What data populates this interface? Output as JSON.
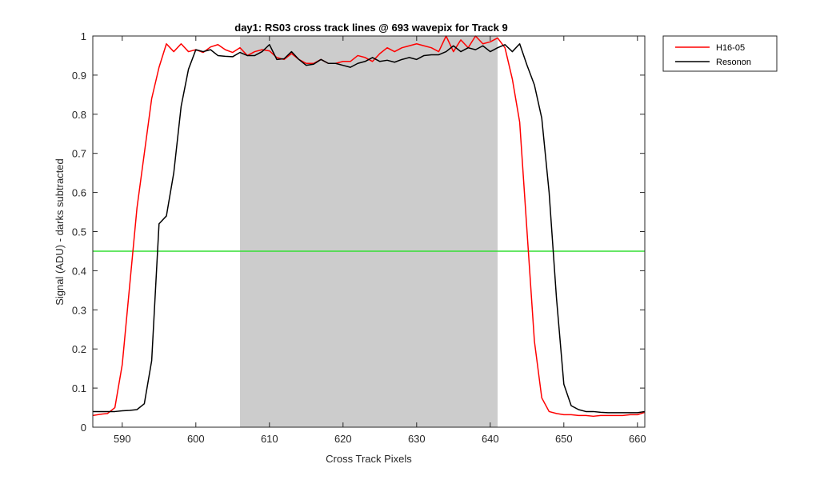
{
  "chart_data": {
    "type": "line",
    "title": "day1: RS03  cross track lines @ 693 wavepix for Track 9",
    "xlabel": "Cross Track Pixels",
    "ylabel": "Signal (ADU) - darks subtracted",
    "xlim": [
      586,
      661
    ],
    "ylim": [
      0,
      1
    ],
    "xticks": [
      590,
      600,
      610,
      620,
      630,
      640,
      650,
      660
    ],
    "yticks": [
      0,
      0.1,
      0.2,
      0.3,
      0.4,
      0.5,
      0.6,
      0.7,
      0.8,
      0.9,
      1
    ],
    "xtick_labels": [
      "590",
      "600",
      "610",
      "620",
      "630",
      "640",
      "650",
      "660"
    ],
    "ytick_labels": [
      "0",
      "0.1",
      "0.2",
      "0.3",
      "0.4",
      "0.5",
      "0.6",
      "0.7",
      "0.8",
      "0.9",
      "1"
    ],
    "grid": false,
    "legend_position": "outside-top-right",
    "shaded_region": {
      "x": [
        606,
        641
      ],
      "color": "#cccccc"
    },
    "hline": {
      "y": 0.45,
      "color": "#33dd33"
    },
    "series": [
      {
        "name": "H16-05",
        "color": "#ff0000",
        "x": [
          586,
          587,
          588,
          589,
          590,
          591,
          592,
          593,
          594,
          595,
          596,
          597,
          598,
          599,
          600,
          601,
          602,
          603,
          604,
          605,
          606,
          607,
          608,
          609,
          610,
          611,
          612,
          613,
          614,
          615,
          616,
          617,
          618,
          619,
          620,
          621,
          622,
          623,
          624,
          625,
          626,
          627,
          628,
          629,
          630,
          631,
          632,
          633,
          634,
          635,
          636,
          637,
          638,
          639,
          640,
          641,
          642,
          643,
          644,
          645,
          646,
          647,
          648,
          649,
          650,
          651,
          652,
          653,
          654,
          655,
          656,
          657,
          658,
          659,
          660,
          661
        ],
        "y": [
          0.03,
          0.033,
          0.035,
          0.05,
          0.16,
          0.36,
          0.56,
          0.7,
          0.84,
          0.92,
          0.98,
          0.96,
          0.98,
          0.96,
          0.965,
          0.958,
          0.972,
          0.978,
          0.965,
          0.958,
          0.97,
          0.95,
          0.96,
          0.965,
          0.962,
          0.945,
          0.94,
          0.955,
          0.94,
          0.93,
          0.93,
          0.94,
          0.93,
          0.93,
          0.935,
          0.935,
          0.95,
          0.945,
          0.935,
          0.955,
          0.97,
          0.96,
          0.97,
          0.975,
          0.98,
          0.975,
          0.97,
          0.96,
          1.0,
          0.96,
          0.99,
          0.97,
          1.0,
          0.98,
          0.985,
          0.995,
          0.97,
          0.89,
          0.78,
          0.5,
          0.22,
          0.075,
          0.04,
          0.035,
          0.032,
          0.032,
          0.03,
          0.03,
          0.028,
          0.03,
          0.03,
          0.03,
          0.03,
          0.032,
          0.032,
          0.038
        ]
      },
      {
        "name": "Resonon",
        "color": "#000000",
        "x": [
          586,
          587,
          588,
          589,
          590,
          591,
          592,
          593,
          594,
          595,
          596,
          597,
          598,
          599,
          600,
          601,
          602,
          603,
          604,
          605,
          606,
          607,
          608,
          609,
          610,
          611,
          612,
          613,
          614,
          615,
          616,
          617,
          618,
          619,
          620,
          621,
          622,
          623,
          624,
          625,
          626,
          627,
          628,
          629,
          630,
          631,
          632,
          633,
          634,
          635,
          636,
          637,
          638,
          639,
          640,
          641,
          642,
          643,
          644,
          645,
          646,
          647,
          648,
          649,
          650,
          651,
          652,
          653,
          654,
          655,
          656,
          657,
          658,
          659,
          660,
          661
        ],
        "y": [
          0.04,
          0.04,
          0.04,
          0.04,
          0.042,
          0.043,
          0.045,
          0.06,
          0.17,
          0.52,
          0.54,
          0.65,
          0.82,
          0.915,
          0.965,
          0.96,
          0.965,
          0.95,
          0.948,
          0.947,
          0.958,
          0.95,
          0.95,
          0.96,
          0.978,
          0.94,
          0.942,
          0.96,
          0.94,
          0.925,
          0.928,
          0.94,
          0.93,
          0.93,
          0.925,
          0.92,
          0.93,
          0.935,
          0.945,
          0.935,
          0.938,
          0.933,
          0.94,
          0.945,
          0.94,
          0.95,
          0.952,
          0.952,
          0.96,
          0.975,
          0.96,
          0.97,
          0.965,
          0.975,
          0.96,
          0.97,
          0.978,
          0.96,
          0.98,
          0.925,
          0.875,
          0.79,
          0.6,
          0.33,
          0.11,
          0.055,
          0.045,
          0.04,
          0.04,
          0.038,
          0.037,
          0.037,
          0.037,
          0.037,
          0.037,
          0.04
        ]
      }
    ]
  }
}
